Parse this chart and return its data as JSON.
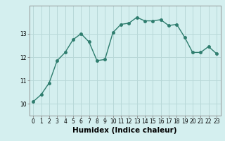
{
  "x": [
    0,
    1,
    2,
    3,
    4,
    5,
    6,
    7,
    8,
    9,
    10,
    11,
    12,
    13,
    14,
    15,
    16,
    17,
    18,
    19,
    20,
    21,
    22,
    23
  ],
  "y": [
    10.1,
    10.4,
    10.9,
    11.85,
    12.2,
    12.75,
    13.0,
    12.65,
    11.85,
    11.9,
    13.05,
    13.4,
    13.45,
    13.7,
    13.55,
    13.55,
    13.6,
    13.35,
    13.4,
    12.85,
    12.2,
    12.2,
    12.45,
    12.15
  ],
  "line_color": "#2e7d6e",
  "marker": "o",
  "markersize": 2.5,
  "linewidth": 1.0,
  "bg_color": "#d4efef",
  "grid_color": "#b8d8d8",
  "xlabel": "Humidex (Indice chaleur)",
  "xlabel_fontsize": 7.5,
  "xlim": [
    -0.5,
    23.5
  ],
  "ylim": [
    9.5,
    14.2
  ],
  "yticks": [
    10,
    11,
    12,
    13
  ],
  "xticks": [
    0,
    1,
    2,
    3,
    4,
    5,
    6,
    7,
    8,
    9,
    10,
    11,
    12,
    13,
    14,
    15,
    16,
    17,
    18,
    19,
    20,
    21,
    22,
    23
  ],
  "tick_fontsize": 5.5
}
